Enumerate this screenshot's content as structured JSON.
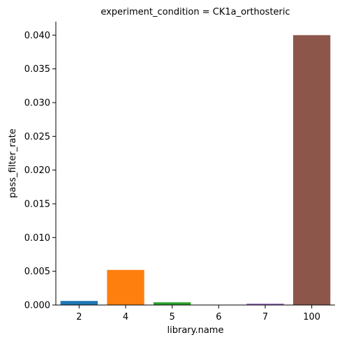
{
  "chart_data": {
    "type": "bar",
    "title": "experiment_condition = CK1a_orthosteric",
    "xlabel": "library.name",
    "ylabel": "pass_filter_rate",
    "categories": [
      "2",
      "4",
      "5",
      "6",
      "7",
      "100"
    ],
    "values": [
      0.0006,
      0.0052,
      0.0004,
      0.0,
      0.0002,
      0.04
    ],
    "colors": [
      "#1f77b4",
      "#ff7f0e",
      "#2ca02c",
      "#d62728",
      "#9467bd",
      "#8c564b"
    ],
    "ylim": [
      0,
      0.042
    ],
    "yticks": [
      0,
      0.005,
      0.01,
      0.015,
      0.02,
      0.025,
      0.03,
      0.035,
      0.04
    ],
    "ytick_labels": [
      "0.000",
      "0.005",
      "0.010",
      "0.015",
      "0.020",
      "0.025",
      "0.030",
      "0.035",
      "0.040"
    ],
    "grid": false,
    "legend": "none"
  }
}
